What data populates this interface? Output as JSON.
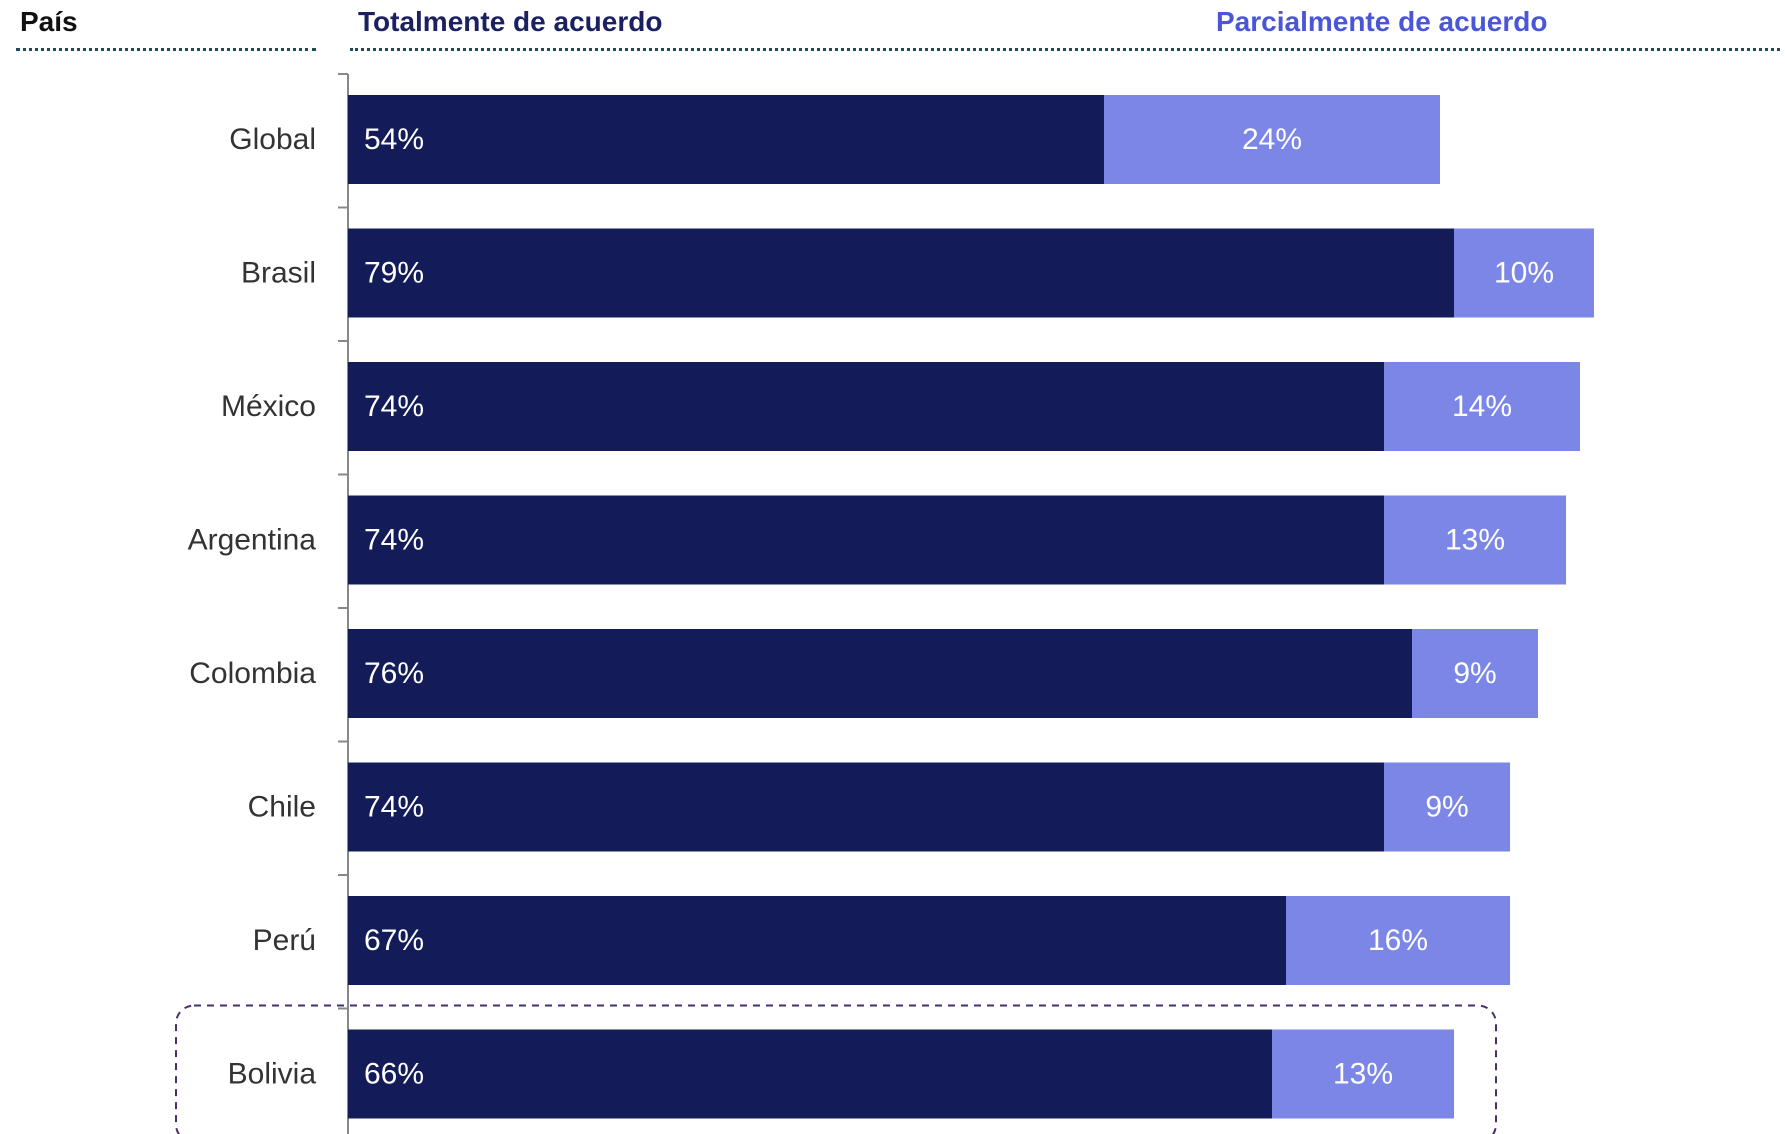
{
  "header": {
    "country_label": "País",
    "total_label": "Totalmente de acuerdo",
    "partial_label": "Parcialmente de acuerdo"
  },
  "colors": {
    "total": "#131c58",
    "partial": "#7b86e6",
    "total_header": "#1a2060",
    "partial_header": "#4a55d8",
    "highlight_border": "#4a2d6b",
    "axis": "#888888"
  },
  "chart_data": {
    "type": "bar",
    "orientation": "horizontal",
    "stacked": true,
    "categories": [
      "Global",
      "Brasil",
      "México",
      "Argentina",
      "Colombia",
      "Chile",
      "Perú",
      "Bolivia"
    ],
    "series": [
      {
        "name": "Totalmente de acuerdo",
        "values": [
          54,
          79,
          74,
          74,
          76,
          74,
          67,
          66
        ],
        "labels": [
          "54%",
          "79%",
          "74%",
          "74%",
          "76%",
          "74%",
          "67%",
          "66%"
        ]
      },
      {
        "name": "Parcialmente de acuerdo",
        "values": [
          24,
          10,
          14,
          13,
          9,
          9,
          16,
          13
        ],
        "labels": [
          "24%",
          "10%",
          "14%",
          "13%",
          "9%",
          "9%",
          "16%",
          "13%"
        ]
      }
    ],
    "xlim": [
      0,
      100
    ],
    "grid": false,
    "highlighted_category": "Bolivia"
  }
}
